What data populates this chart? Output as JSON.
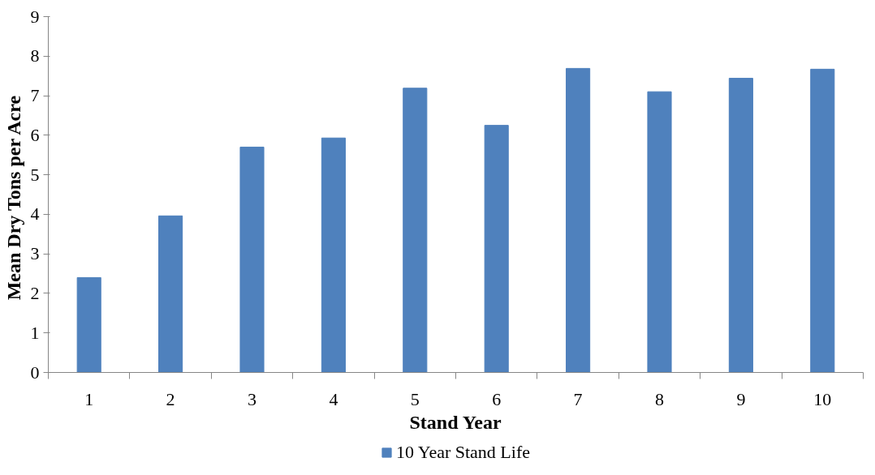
{
  "chart_data": {
    "type": "bar",
    "xlabel": "Stand Year",
    "ylabel": "Mean Dry  Tons per Acre",
    "categories": [
      "1",
      "2",
      "3",
      "4",
      "5",
      "6",
      "7",
      "8",
      "9",
      "10"
    ],
    "series": [
      {
        "name": "10 Year Stand Life",
        "color": "#4f81bd",
        "values": [
          2.4,
          3.96,
          5.7,
          5.93,
          7.19,
          6.25,
          7.69,
          7.1,
          7.44,
          7.67
        ]
      }
    ],
    "ylim": [
      0,
      9
    ],
    "yticks": [
      0,
      1,
      2,
      3,
      4,
      5,
      6,
      7,
      8,
      9
    ],
    "grid": false,
    "legend": "bottom"
  }
}
